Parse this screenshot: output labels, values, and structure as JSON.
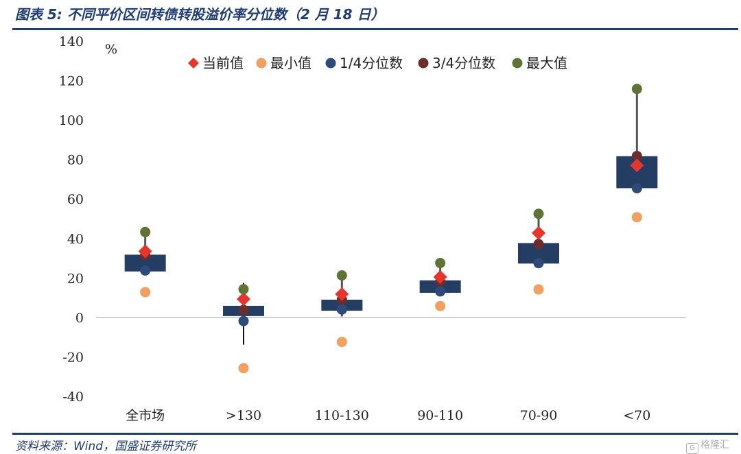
{
  "figure": {
    "title": "图表 5:  不同平价区间转债转股溢价率分位数（2 月 18 日）",
    "source": "资料来源：Wind，国盛证券研究所",
    "watermark": "格隆汇",
    "watermark_icon": "G"
  },
  "colors": {
    "title": "#1f3c74",
    "box": "#243d63",
    "current": "#e8352b",
    "min": "#f0a060",
    "q1": "#2e4a7a",
    "q3": "#6b2d2d",
    "max": "#5e7334",
    "whisker": "#555555",
    "zero_line": "#cfcfcf"
  },
  "chart_data": {
    "type": "box",
    "unit_label": "%",
    "ylim": [
      -40,
      140
    ],
    "yticks": [
      "-40",
      "-20",
      "0",
      "20",
      "40",
      "60",
      "80",
      "100",
      "120",
      "140"
    ],
    "ytick_values": [
      -40,
      -20,
      0,
      20,
      40,
      60,
      80,
      100,
      120,
      140
    ],
    "categories": [
      "全市场",
      ">130",
      "110-130",
      "90-110",
      "70-90",
      "<70"
    ],
    "legend": [
      "当前值",
      "最小值",
      "1/4分位数",
      "3/4分位数",
      "最大值"
    ],
    "legend_position": "top",
    "grid": false,
    "series": [
      {
        "name": "当前值",
        "marker": "diamond",
        "values": [
          33.5,
          9.3,
          11.8,
          20.5,
          42.8,
          77.0
        ]
      },
      {
        "name": "最小值",
        "marker": "circle",
        "values": [
          12.8,
          -25.7,
          -12.4,
          5.8,
          14.2,
          50.8
        ]
      },
      {
        "name": "1/4分位数",
        "marker": "circle",
        "values": [
          23.8,
          -1.8,
          4.0,
          13.2,
          27.5,
          65.5
        ]
      },
      {
        "name": "3/4分位数",
        "marker": "circle",
        "values": [
          31.5,
          3.8,
          9.0,
          18.2,
          37.2,
          81.8
        ]
      },
      {
        "name": "最大值",
        "marker": "circle",
        "values": [
          43.3,
          14.3,
          21.3,
          27.6,
          52.5,
          115.8
        ]
      }
    ],
    "boxes": [
      {
        "low": 23.3,
        "high": 31.8
      },
      {
        "low": 0.7,
        "high": 5.9
      },
      {
        "low": 3.4,
        "high": 9.0
      },
      {
        "low": 12.5,
        "high": 18.8
      },
      {
        "low": 27.3,
        "high": 37.7
      },
      {
        "low": 65.5,
        "high": 81.7
      }
    ],
    "whiskers": [
      {
        "low": 23.8,
        "high": 43.3
      },
      {
        "low": -13.8,
        "high": 17.5
      },
      {
        "low": 0.5,
        "high": 21.0
      },
      {
        "low": 13.2,
        "high": 27.6
      },
      {
        "low": 27.5,
        "high": 52.5
      },
      {
        "low": 65.5,
        "high": 115.8
      }
    ]
  }
}
